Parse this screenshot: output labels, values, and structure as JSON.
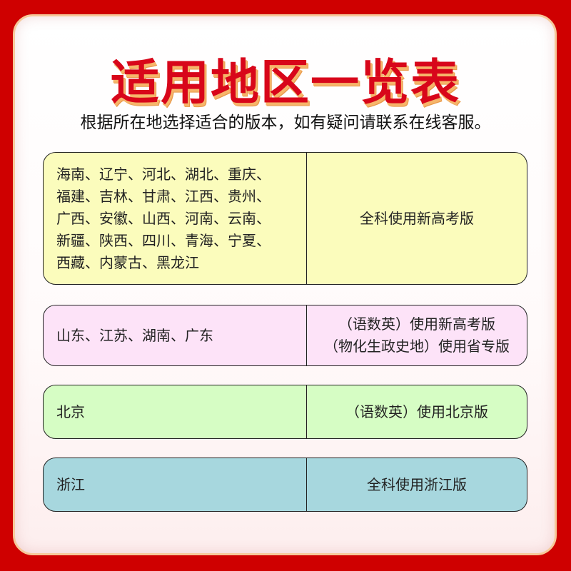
{
  "title": "适用地区一览表",
  "subtitle": "根据所在地选择适合的版本，如有疑问请联系在线客服。",
  "rows": [
    {
      "regions_lines": [
        "海南、辽宁、河北、湖北、重庆、",
        "福建、吉林、甘肃、江西、贵州、",
        "广西、安徽、山西、河南、云南、",
        "新疆、陕西、四川、青海、宁夏、",
        "西藏、内蒙古、黑龙江"
      ],
      "edition_lines": [
        "全科使用新高考版"
      ],
      "color": "#fbfcbc"
    },
    {
      "regions_lines": [
        "山东、江苏、湖南、广东"
      ],
      "edition_lines": [
        "（语数英）使用新高考版",
        "（物化生政史地）使用省专版"
      ],
      "color": "#fde3f8"
    },
    {
      "regions_lines": [
        "北京"
      ],
      "edition_lines": [
        "（语数英）使用北京版"
      ],
      "color": "#d6fdc4"
    },
    {
      "regions_lines": [
        "浙江"
      ],
      "edition_lines": [
        "全科使用浙江版"
      ],
      "color": "#a7d7de"
    }
  ],
  "colors": {
    "background": "#cf0000",
    "title": "#d8061a"
  }
}
